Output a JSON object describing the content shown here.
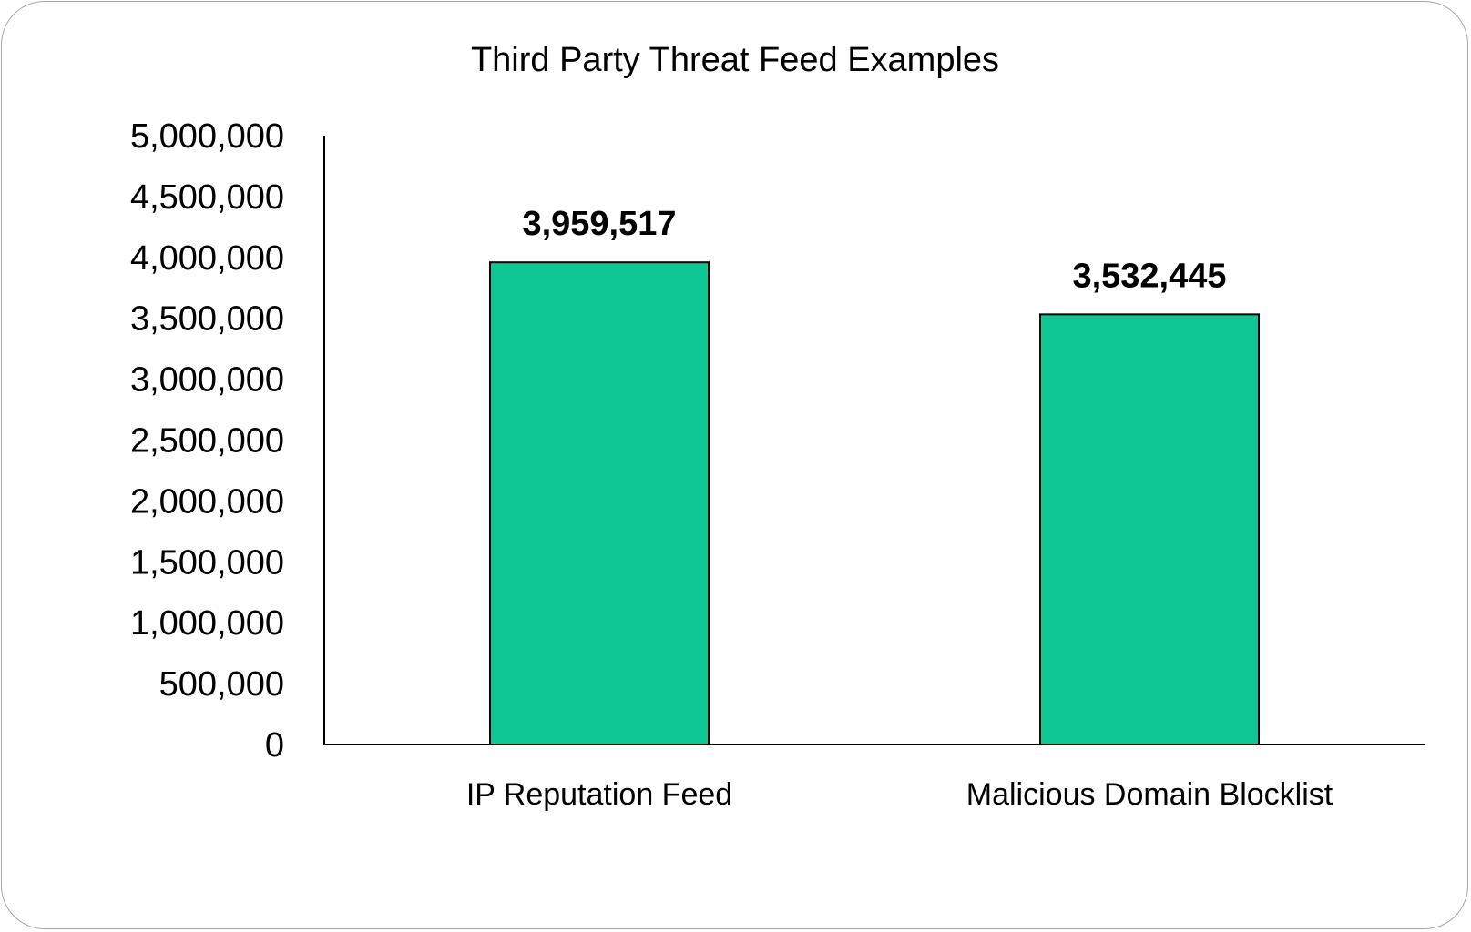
{
  "chart_data": {
    "type": "bar",
    "title": "Third Party Threat Feed Examples",
    "categories": [
      "IP Reputation Feed",
      "Malicious Domain Blocklist"
    ],
    "values": [
      3959517,
      3532445
    ],
    "data_labels": [
      "3,959,517",
      "3,532,445"
    ],
    "ylim": [
      0,
      5000000
    ],
    "yticks": [
      0,
      500000,
      1000000,
      1500000,
      2000000,
      2500000,
      3000000,
      3500000,
      4000000,
      4500000,
      5000000
    ],
    "ytick_labels": [
      "0",
      "500,000",
      "1,000,000",
      "1,500,000",
      "2,000,000",
      "2,500,000",
      "3,000,000",
      "3,500,000",
      "4,000,000",
      "4,500,000",
      "5,000,000"
    ],
    "xlabel": "",
    "ylabel": "",
    "grid": false,
    "legend": "none",
    "bar_color": "#0dc795",
    "bar_edge_color": "#000000"
  }
}
